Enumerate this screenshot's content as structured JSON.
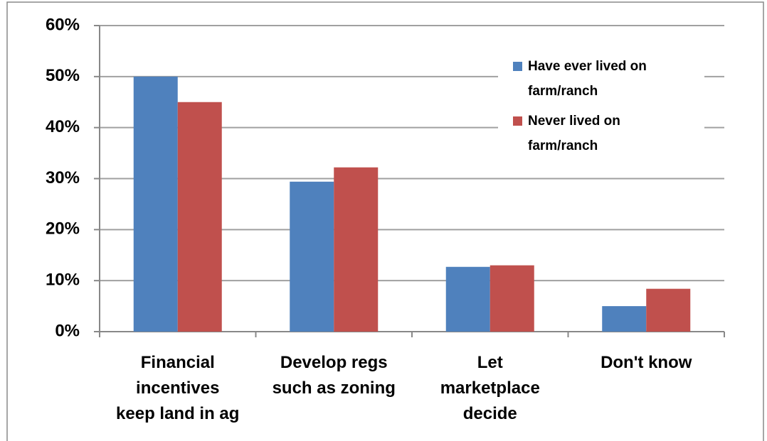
{
  "chart_data": {
    "type": "bar",
    "categories": [
      "Financial\nincentives\nkeep land in ag",
      "Develop regs\nsuch as zoning",
      "Let\nmarketplace\ndecide",
      "Don't know"
    ],
    "series": [
      {
        "name": "Have ever lived on\nfarm/ranch",
        "color": "#4f81bd",
        "values": [
          50,
          29.4,
          12.7,
          5.0
        ]
      },
      {
        "name": "Never lived on\nfarm/ranch",
        "color": "#c0504d",
        "values": [
          45,
          32.2,
          13.0,
          8.4
        ]
      }
    ],
    "ylim": [
      0,
      60
    ],
    "yticks": [
      {
        "value": 0,
        "label": "0%"
      },
      {
        "value": 10,
        "label": "10%"
      },
      {
        "value": 20,
        "label": "20%"
      },
      {
        "value": 30,
        "label": "30%"
      },
      {
        "value": 40,
        "label": "40%"
      },
      {
        "value": 50,
        "label": "50%"
      },
      {
        "value": 60,
        "label": "60%"
      }
    ],
    "grid": true,
    "legend": "upper right"
  }
}
